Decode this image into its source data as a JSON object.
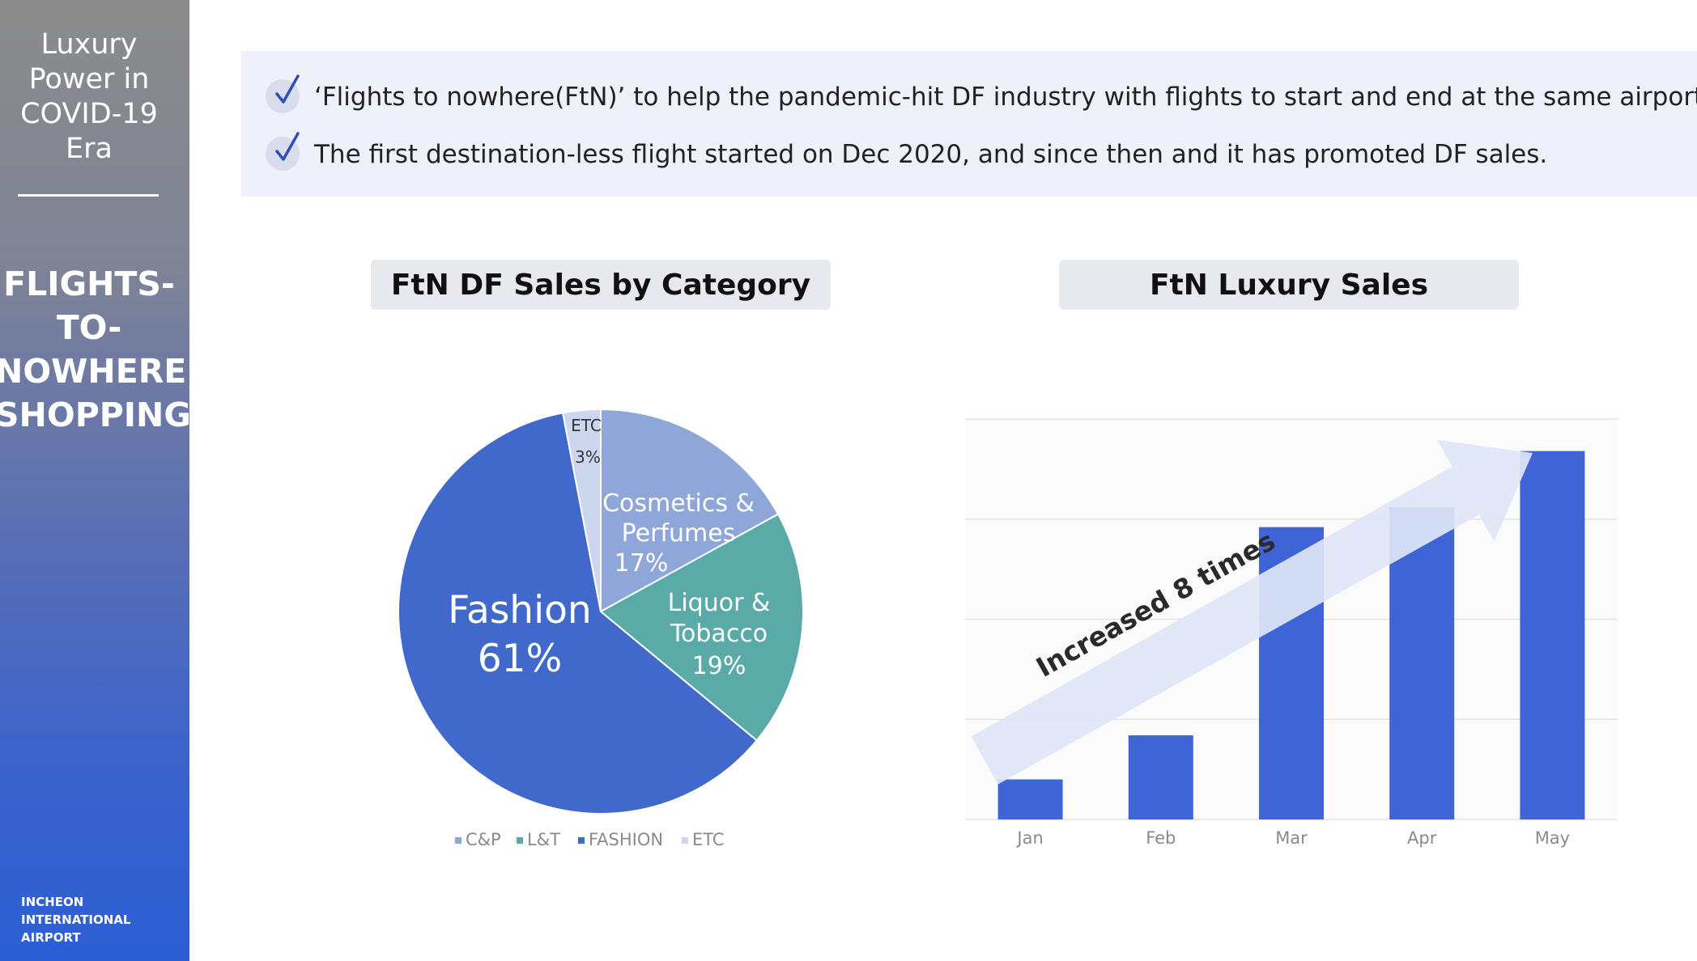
{
  "sidebar": {
    "subtitle": "Luxury\nPower in\nCOVID-19\nEra",
    "title": "FLIGHTS-\nTO-\nNOWHERE\nSHOPPING",
    "logo": "INCHEON\nINTERNATIONAL\nAIRPORT"
  },
  "bullets": [
    "‘Flights to nowhere(FtN)’ to help the pandemic-hit DF industry with flights to start and end at the same airport.",
    "The first destination-less flight started on Dec 2020, and since then and it has promoted DF sales."
  ],
  "colors": {
    "cp": "#8ea6d8",
    "lt": "#5aaaa8",
    "fashion": "#4169cc",
    "etc": "#ccd6ee",
    "bar": "#3f64d6",
    "arrow": "#dfe6f7"
  },
  "chart_data": [
    {
      "type": "pie",
      "title": "FtN DF Sales by Category",
      "slices": [
        {
          "label": "Cosmetics &\nPerfumes",
          "legend": "C&P",
          "value": 17,
          "value_label": "17%"
        },
        {
          "label": "Liquor &\nTobacco",
          "legend": "L&T",
          "value": 19,
          "value_label": "19%"
        },
        {
          "label": "Fashion",
          "legend": "FASHION",
          "value": 61,
          "value_label": "61%"
        },
        {
          "label": "ETC",
          "legend": "ETC",
          "value": 3,
          "value_label": "3%"
        }
      ],
      "legend_position": "bottom"
    },
    {
      "type": "bar",
      "title": "FtN Luxury Sales",
      "categories": [
        "Jan",
        "Feb",
        "Mar",
        "Apr",
        "May"
      ],
      "values": [
        1,
        2.1,
        7.3,
        7.8,
        9.2
      ],
      "ylim": [
        0,
        10
      ],
      "grid": true,
      "annotation": "Increased 8 times"
    }
  ]
}
